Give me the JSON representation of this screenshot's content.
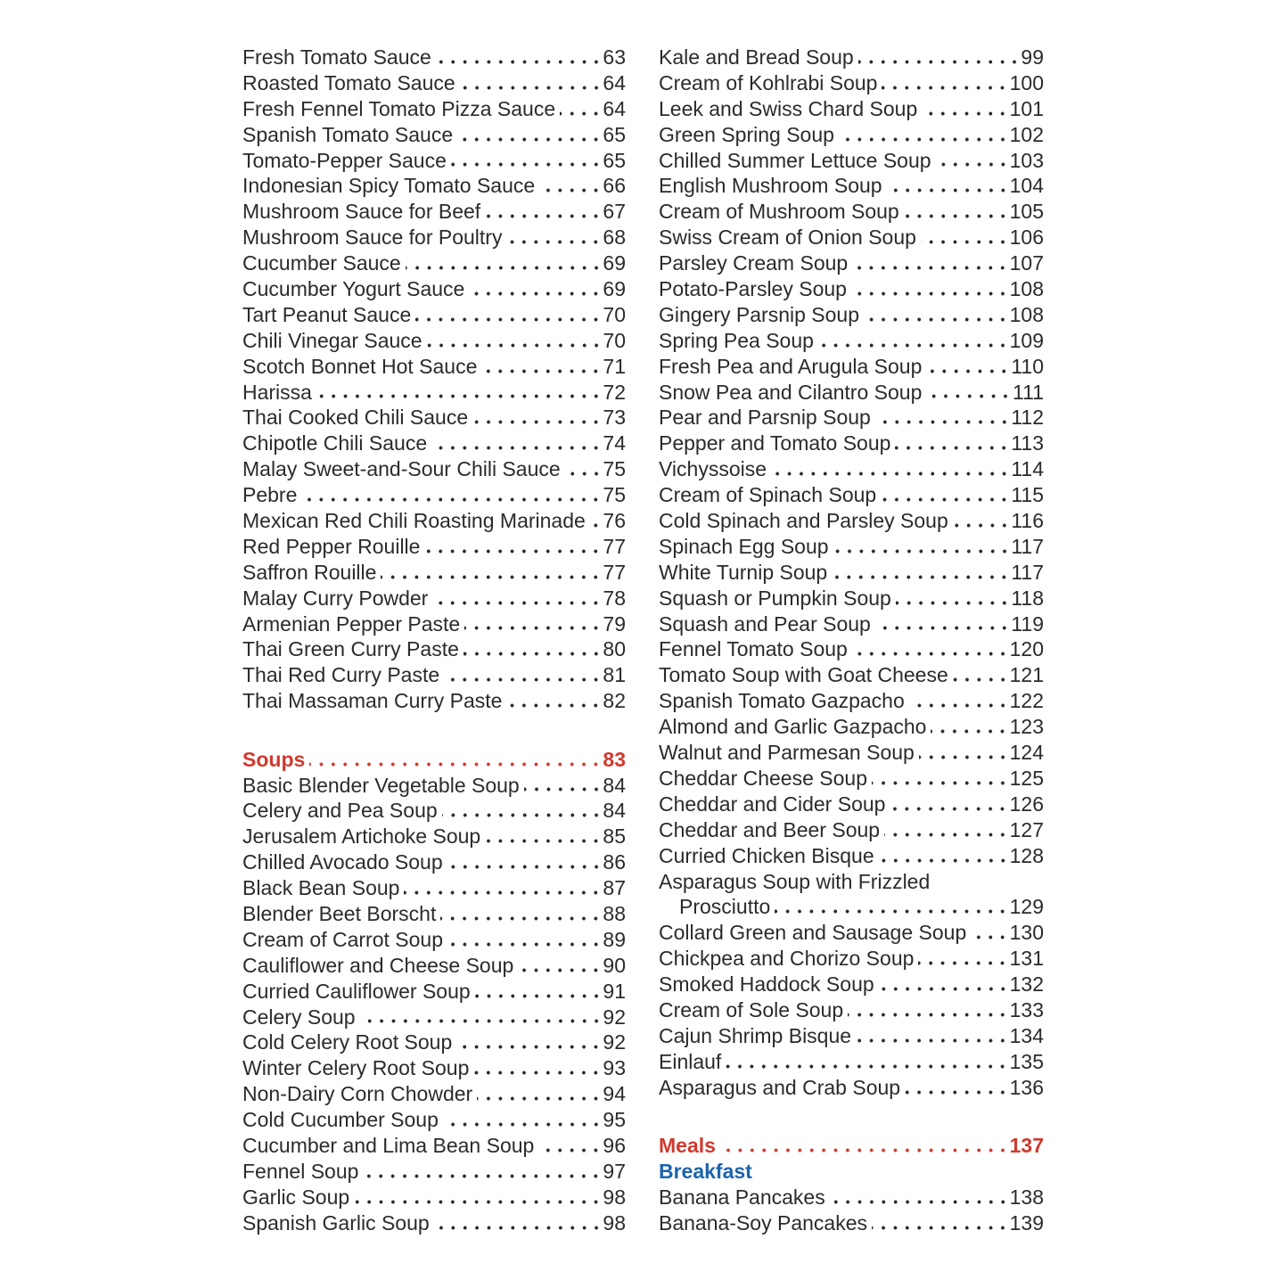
{
  "page": {
    "kind": "cookbook-table-of-contents",
    "background": "#ffffff",
    "ink_color": "#2b2b2b",
    "accent_red": "#cf3a2e",
    "accent_blue": "#1b63ad"
  },
  "toc": {
    "left_column": [
      {
        "style": "entry",
        "label": "Fresh Tomato Sauce",
        "page": "63"
      },
      {
        "style": "entry",
        "label": "Roasted Tomato Sauce",
        "page": "64"
      },
      {
        "style": "entry",
        "label": "Fresh Fennel Tomato Pizza Sauce",
        "page": "64"
      },
      {
        "style": "entry",
        "label": "Spanish Tomato Sauce",
        "page": "65"
      },
      {
        "style": "entry",
        "label": "Tomato-Pepper Sauce",
        "page": "65"
      },
      {
        "style": "entry",
        "label": "Indonesian Spicy Tomato Sauce",
        "page": "66"
      },
      {
        "style": "entry",
        "label": "Mushroom Sauce for Beef",
        "page": "67"
      },
      {
        "style": "entry",
        "label": "Mushroom Sauce for Poultry",
        "page": "68"
      },
      {
        "style": "entry",
        "label": "Cucumber Sauce",
        "page": "69"
      },
      {
        "style": "entry",
        "label": "Cucumber Yogurt Sauce",
        "page": "69"
      },
      {
        "style": "entry",
        "label": "Tart Peanut Sauce",
        "page": "70"
      },
      {
        "style": "entry",
        "label": "Chili Vinegar Sauce",
        "page": "70"
      },
      {
        "style": "entry",
        "label": "Scotch Bonnet Hot Sauce",
        "page": "71"
      },
      {
        "style": "entry",
        "label": "Harissa",
        "page": "72"
      },
      {
        "style": "entry",
        "label": "Thai Cooked Chili Sauce",
        "page": "73"
      },
      {
        "style": "entry",
        "label": "Chipotle Chili Sauce",
        "page": "74"
      },
      {
        "style": "entry",
        "label": "Malay Sweet-and-Sour Chili Sauce",
        "page": "75"
      },
      {
        "style": "entry",
        "label": "Pebre",
        "page": "75"
      },
      {
        "style": "entry",
        "label": "Mexican Red Chili Roasting Marinade",
        "page": "76"
      },
      {
        "style": "entry",
        "label": "Red Pepper Rouille",
        "page": "77"
      },
      {
        "style": "entry",
        "label": "Saffron Rouille",
        "page": "77"
      },
      {
        "style": "entry",
        "label": "Malay Curry Powder",
        "page": "78"
      },
      {
        "style": "entry",
        "label": "Armenian Pepper Paste",
        "page": "79"
      },
      {
        "style": "entry",
        "label": "Thai Green Curry Paste",
        "page": "80"
      },
      {
        "style": "entry",
        "label": "Thai Red Curry Paste",
        "page": "81"
      },
      {
        "style": "entry",
        "label": "Thai Massaman Curry Paste",
        "page": "82"
      },
      {
        "style": "spacer"
      },
      {
        "style": "section-red",
        "label": "Soups",
        "page": "83"
      },
      {
        "style": "entry",
        "label": "Basic Blender Vegetable Soup",
        "page": "84"
      },
      {
        "style": "entry",
        "label": "Celery and Pea Soup",
        "page": "84"
      },
      {
        "style": "entry",
        "label": "Jerusalem Artichoke Soup",
        "page": "85"
      },
      {
        "style": "entry",
        "label": "Chilled Avocado Soup",
        "page": "86"
      },
      {
        "style": "entry",
        "label": "Black Bean Soup",
        "page": "87"
      },
      {
        "style": "entry",
        "label": "Blender Beet Borscht",
        "page": "88"
      },
      {
        "style": "entry",
        "label": "Cream of Carrot Soup",
        "page": "89"
      },
      {
        "style": "entry",
        "label": "Cauliflower and Cheese Soup",
        "page": "90"
      },
      {
        "style": "entry",
        "label": "Curried Cauliflower Soup",
        "page": "91"
      },
      {
        "style": "entry",
        "label": "Celery Soup",
        "page": "92"
      },
      {
        "style": "entry",
        "label": "Cold Celery Root Soup",
        "page": "92"
      },
      {
        "style": "entry",
        "label": "Winter Celery Root Soup",
        "page": "93"
      },
      {
        "style": "entry",
        "label": "Non-Dairy Corn Chowder",
        "page": "94"
      },
      {
        "style": "entry",
        "label": "Cold Cucumber Soup",
        "page": "95"
      },
      {
        "style": "entry",
        "label": "Cucumber and Lima Bean Soup",
        "page": "96"
      },
      {
        "style": "entry",
        "label": "Fennel Soup",
        "page": "97"
      },
      {
        "style": "entry",
        "label": "Garlic Soup",
        "page": "98"
      },
      {
        "style": "entry",
        "label": "Spanish Garlic Soup",
        "page": "98"
      }
    ],
    "right_column": [
      {
        "style": "entry",
        "label": "Kale and Bread Soup",
        "page": "99"
      },
      {
        "style": "entry",
        "label": "Cream of Kohlrabi Soup",
        "page": "100"
      },
      {
        "style": "entry",
        "label": "Leek and Swiss Chard Soup",
        "page": "101"
      },
      {
        "style": "entry",
        "label": "Green Spring Soup",
        "page": "102"
      },
      {
        "style": "entry",
        "label": "Chilled Summer Lettuce Soup",
        "page": "103"
      },
      {
        "style": "entry",
        "label": "English Mushroom Soup",
        "page": "104"
      },
      {
        "style": "entry",
        "label": "Cream of Mushroom Soup",
        "page": "105"
      },
      {
        "style": "entry",
        "label": "Swiss Cream of Onion Soup",
        "page": "106"
      },
      {
        "style": "entry",
        "label": "Parsley Cream Soup",
        "page": "107"
      },
      {
        "style": "entry",
        "label": "Potato-Parsley Soup",
        "page": "108"
      },
      {
        "style": "entry",
        "label": "Gingery Parsnip Soup",
        "page": "108"
      },
      {
        "style": "entry",
        "label": "Spring Pea Soup",
        "page": "109"
      },
      {
        "style": "entry",
        "label": "Fresh Pea and Arugula Soup",
        "page": "110"
      },
      {
        "style": "entry",
        "label": "Snow Pea and Cilantro Soup",
        "page": "111"
      },
      {
        "style": "entry",
        "label": "Pear and Parsnip Soup",
        "page": "112"
      },
      {
        "style": "entry",
        "label": "Pepper and Tomato Soup",
        "page": "113"
      },
      {
        "style": "entry",
        "label": "Vichyssoise",
        "page": "114"
      },
      {
        "style": "entry",
        "label": "Cream of Spinach Soup",
        "page": "115"
      },
      {
        "style": "entry",
        "label": "Cold Spinach and Parsley Soup",
        "page": "116"
      },
      {
        "style": "entry",
        "label": "Spinach Egg Soup",
        "page": "117"
      },
      {
        "style": "entry",
        "label": "White Turnip Soup",
        "page": "117"
      },
      {
        "style": "entry",
        "label": "Squash or Pumpkin Soup",
        "page": "118"
      },
      {
        "style": "entry",
        "label": "Squash and Pear Soup",
        "page": "119"
      },
      {
        "style": "entry",
        "label": "Fennel Tomato Soup",
        "page": "120"
      },
      {
        "style": "entry",
        "label": "Tomato Soup with Goat Cheese",
        "page": "121"
      },
      {
        "style": "entry",
        "label": "Spanish Tomato Gazpacho",
        "page": "122"
      },
      {
        "style": "entry",
        "label": "Almond and Garlic Gazpacho",
        "page": "123"
      },
      {
        "style": "entry",
        "label": "Walnut and Parmesan Soup",
        "page": "124"
      },
      {
        "style": "entry",
        "label": "Cheddar Cheese Soup",
        "page": "125"
      },
      {
        "style": "entry",
        "label": "Cheddar and Cider Soup",
        "page": "126"
      },
      {
        "style": "entry",
        "label": "Cheddar and Beer Soup",
        "page": "127"
      },
      {
        "style": "entry",
        "label": "Curried Chicken Bisque",
        "page": "128"
      },
      {
        "style": "runover-start",
        "label": "Asparagus Soup with Frizzled"
      },
      {
        "style": "runover-end",
        "label": "Prosciutto",
        "page": "129"
      },
      {
        "style": "entry",
        "label": "Collard Green and Sausage Soup",
        "page": "130"
      },
      {
        "style": "entry",
        "label": "Chickpea and Chorizo Soup",
        "page": "131"
      },
      {
        "style": "entry",
        "label": "Smoked Haddock Soup",
        "page": "132"
      },
      {
        "style": "entry",
        "label": "Cream of Sole Soup",
        "page": "133"
      },
      {
        "style": "entry",
        "label": "Cajun Shrimp Bisque",
        "page": "134"
      },
      {
        "style": "entry",
        "label": "Einlauf",
        "page": "135"
      },
      {
        "style": "entry",
        "label": "Asparagus and Crab Soup",
        "page": "136"
      },
      {
        "style": "spacer"
      },
      {
        "style": "section-red",
        "label": "Meals",
        "page": "137"
      },
      {
        "style": "subsection-blue",
        "label": "Breakfast"
      },
      {
        "style": "entry",
        "label": "Banana Pancakes",
        "page": "138"
      },
      {
        "style": "entry",
        "label": "Banana-Soy Pancakes",
        "page": "139"
      }
    ]
  }
}
